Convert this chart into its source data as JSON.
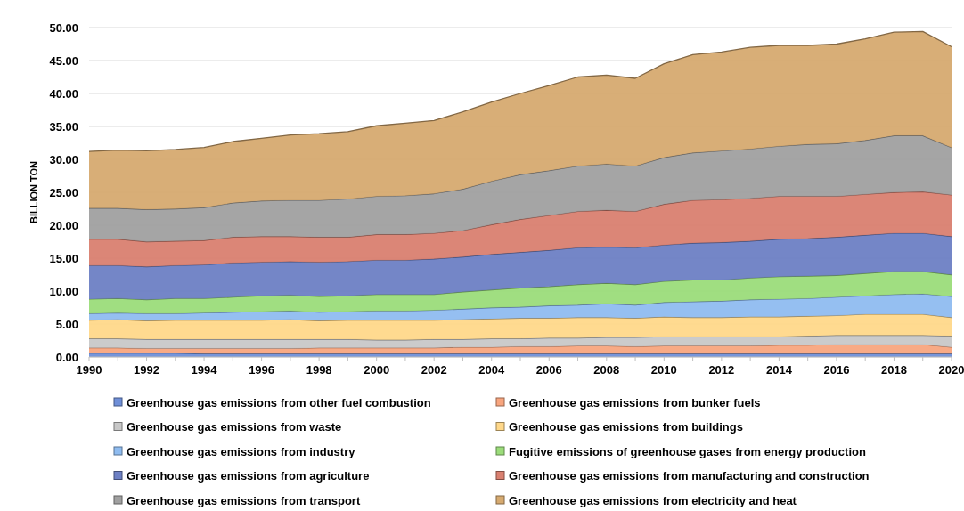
{
  "chart_data": {
    "type": "area",
    "stacked": true,
    "ylabel": "BILLION TON",
    "x": [
      1990,
      1991,
      1992,
      1993,
      1994,
      1995,
      1996,
      1997,
      1998,
      1999,
      2000,
      2001,
      2002,
      2003,
      2004,
      2005,
      2006,
      2007,
      2008,
      2009,
      2010,
      2011,
      2012,
      2013,
      2014,
      2015,
      2016,
      2017,
      2018,
      2019,
      2020
    ],
    "xlim": [
      1990,
      2020
    ],
    "xticks": [
      1990,
      1992,
      1994,
      1996,
      1998,
      2000,
      2002,
      2004,
      2006,
      2008,
      2010,
      2012,
      2014,
      2016,
      2018,
      2020
    ],
    "ylim": [
      0,
      50
    ],
    "yticks": [
      {
        "value": 0,
        "label": "0.00"
      },
      {
        "value": 5,
        "label": "5.00"
      },
      {
        "value": 10,
        "label": "10.00"
      },
      {
        "value": 15,
        "label": "15.00"
      },
      {
        "value": 20,
        "label": "20.00"
      },
      {
        "value": 25,
        "label": "25.00"
      },
      {
        "value": 30,
        "label": "30.00"
      },
      {
        "value": 35,
        "label": "35.00"
      },
      {
        "value": 40,
        "label": "40.00"
      },
      {
        "value": 45,
        "label": "45.00"
      },
      {
        "value": 50,
        "label": "50.00"
      }
    ],
    "grid": "y",
    "legend": "bottom",
    "series": [
      {
        "name": "Greenhouse gas emissions from other fuel combustion",
        "color": "#6f8fd8",
        "values": [
          0.6,
          0.6,
          0.6,
          0.6,
          0.5,
          0.5,
          0.5,
          0.5,
          0.5,
          0.5,
          0.5,
          0.5,
          0.5,
          0.5,
          0.5,
          0.5,
          0.5,
          0.5,
          0.5,
          0.5,
          0.5,
          0.5,
          0.5,
          0.5,
          0.5,
          0.5,
          0.5,
          0.5,
          0.5,
          0.5,
          0.5
        ]
      },
      {
        "name": "Greenhouse gas emissions from bunker fuels",
        "color": "#f8a57e",
        "values": [
          0.8,
          0.8,
          0.7,
          0.7,
          0.8,
          0.8,
          0.8,
          0.8,
          0.9,
          0.9,
          0.9,
          0.9,
          0.9,
          1.0,
          1.0,
          1.1,
          1.1,
          1.2,
          1.2,
          1.1,
          1.2,
          1.2,
          1.2,
          1.2,
          1.3,
          1.3,
          1.4,
          1.4,
          1.4,
          1.4,
          1.0
        ]
      },
      {
        "name": "Greenhouse gas emissions from waste",
        "color": "#c8c8c8",
        "values": [
          1.4,
          1.4,
          1.4,
          1.4,
          1.4,
          1.4,
          1.4,
          1.4,
          1.3,
          1.3,
          1.2,
          1.2,
          1.3,
          1.2,
          1.3,
          1.2,
          1.3,
          1.2,
          1.3,
          1.4,
          1.4,
          1.4,
          1.4,
          1.4,
          1.3,
          1.4,
          1.4,
          1.4,
          1.4,
          1.4,
          1.7
        ]
      },
      {
        "name": "Greenhouse gas emissions from buildings",
        "color": "#ffd88a",
        "values": [
          2.8,
          2.9,
          2.8,
          2.9,
          2.9,
          2.9,
          2.9,
          3.0,
          2.8,
          2.9,
          3.0,
          3.0,
          2.9,
          3.0,
          3.0,
          3.1,
          3.0,
          3.1,
          3.0,
          2.9,
          3.0,
          2.9,
          2.9,
          3.0,
          3.0,
          3.0,
          3.0,
          3.2,
          3.2,
          3.2,
          2.8
        ]
      },
      {
        "name": "Greenhouse gas emissions from industry",
        "color": "#8fbcf0",
        "values": [
          1.0,
          1.0,
          1.1,
          1.0,
          1.1,
          1.2,
          1.3,
          1.3,
          1.3,
          1.3,
          1.4,
          1.4,
          1.5,
          1.6,
          1.7,
          1.7,
          1.9,
          1.9,
          2.1,
          2.0,
          2.2,
          2.4,
          2.5,
          2.6,
          2.7,
          2.7,
          2.8,
          2.8,
          3.0,
          3.1,
          3.2
        ]
      },
      {
        "name": "Fugitive emissions of greenhouse gases from energy production",
        "color": "#9bdc7a",
        "values": [
          2.2,
          2.2,
          2.1,
          2.3,
          2.2,
          2.3,
          2.4,
          2.4,
          2.4,
          2.4,
          2.5,
          2.5,
          2.4,
          2.6,
          2.7,
          2.9,
          2.9,
          3.1,
          3.1,
          3.1,
          3.2,
          3.3,
          3.2,
          3.3,
          3.4,
          3.4,
          3.3,
          3.4,
          3.5,
          3.4,
          3.3
        ]
      },
      {
        "name": "Greenhouse gas emissions from agriculture",
        "color": "#6d80c4",
        "values": [
          5.1,
          5.0,
          5.0,
          5.0,
          5.1,
          5.2,
          5.1,
          5.1,
          5.2,
          5.2,
          5.2,
          5.2,
          5.4,
          5.3,
          5.4,
          5.4,
          5.5,
          5.6,
          5.5,
          5.6,
          5.5,
          5.6,
          5.7,
          5.6,
          5.7,
          5.7,
          5.8,
          5.8,
          5.8,
          5.8,
          5.8
        ]
      },
      {
        "name": "Greenhouse gas emissions from manufacturing and construction",
        "color": "#d98070",
        "values": [
          4.0,
          4.0,
          3.8,
          3.7,
          3.7,
          3.9,
          3.9,
          3.8,
          3.8,
          3.7,
          3.9,
          3.9,
          3.9,
          4.0,
          4.5,
          5.0,
          5.3,
          5.5,
          5.6,
          5.5,
          6.2,
          6.5,
          6.5,
          6.5,
          6.5,
          6.4,
          6.2,
          6.2,
          6.2,
          6.3,
          6.3
        ]
      },
      {
        "name": "Greenhouse gas emissions from transport",
        "color": "#a0a0a0",
        "values": [
          4.7,
          4.7,
          4.9,
          4.9,
          5.0,
          5.2,
          5.4,
          5.5,
          5.6,
          5.8,
          5.8,
          5.9,
          6.0,
          6.3,
          6.6,
          6.8,
          6.8,
          6.9,
          7.0,
          6.9,
          7.1,
          7.2,
          7.4,
          7.5,
          7.6,
          7.9,
          8.0,
          8.2,
          8.6,
          8.5,
          7.2
        ]
      },
      {
        "name": "Greenhouse gas emissions from electricity and heat",
        "color": "#d6aa70",
        "values": [
          8.6,
          8.8,
          8.9,
          9.0,
          9.1,
          9.3,
          9.5,
          9.9,
          10.1,
          10.2,
          10.7,
          11.0,
          11.1,
          11.7,
          12.0,
          12.3,
          12.9,
          13.5,
          13.5,
          13.3,
          14.2,
          14.9,
          15.0,
          15.4,
          15.3,
          15.0,
          15.1,
          15.4,
          15.7,
          15.8,
          15.3
        ]
      }
    ]
  }
}
